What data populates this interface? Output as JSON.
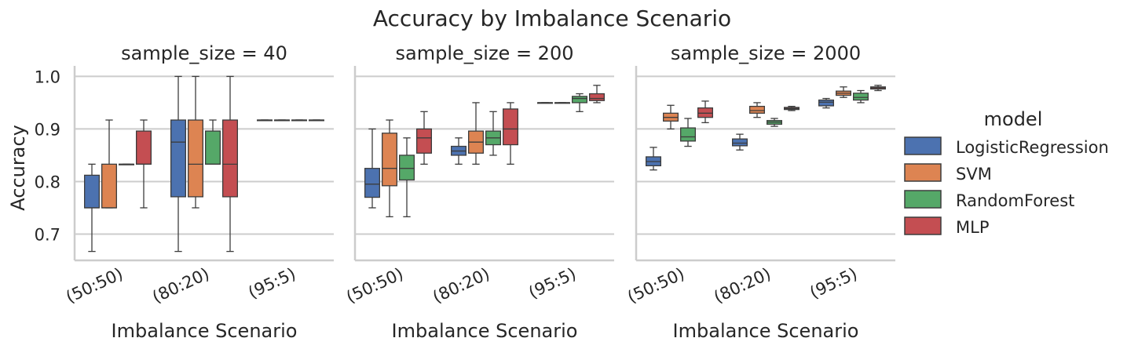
{
  "title": "Accuracy by Imbalance Scenario",
  "ylabel": "Accuracy",
  "legend_title": "model",
  "colors": {
    "LogisticRegression": "#4c72b0",
    "SVM": "#dd8452",
    "RandomForest": "#55a868",
    "MLP": "#c44e52",
    "grid": "#cccccc",
    "whisker": "#3d3d3d"
  },
  "chart_data": {
    "type": "box",
    "title": "Accuracy by Imbalance Scenario",
    "ylabel": "Accuracy",
    "ylim": [
      0.65,
      1.02
    ],
    "yticks": [
      0.7,
      0.8,
      0.9,
      1.0
    ],
    "ytick_labels": [
      "0.7",
      "0.8",
      "0.9",
      "1.0"
    ],
    "grid": "horizontal",
    "legend_title": "model",
    "legend_placement": "right",
    "categories": [
      "(50:50)",
      "(80:20)",
      "(95:5)"
    ],
    "series_names": [
      "LogisticRegression",
      "SVM",
      "RandomForest",
      "MLP"
    ],
    "facets": [
      {
        "title": "sample_size = 40",
        "xlabel": "Imbalance Scenario",
        "boxes": [
          [
            {
              "min": 0.667,
              "q1": 0.75,
              "median": 0.75,
              "q3": 0.812,
              "max": 0.833
            },
            {
              "min": 0.75,
              "q1": 0.75,
              "median": 0.75,
              "q3": 0.833,
              "max": 0.917
            },
            {
              "min": 0.833,
              "q1": 0.833,
              "median": 0.833,
              "q3": 0.833,
              "max": 0.833
            },
            {
              "min": 0.75,
              "q1": 0.833,
              "median": 0.833,
              "q3": 0.896,
              "max": 0.917
            }
          ],
          [
            {
              "min": 0.667,
              "q1": 0.771,
              "median": 0.875,
              "q3": 0.917,
              "max": 1.0
            },
            {
              "min": 0.75,
              "q1": 0.771,
              "median": 0.833,
              "q3": 0.917,
              "max": 1.0
            },
            {
              "min": 0.833,
              "q1": 0.833,
              "median": 0.833,
              "q3": 0.896,
              "max": 0.917
            },
            {
              "min": 0.667,
              "q1": 0.771,
              "median": 0.833,
              "q3": 0.917,
              "max": 1.0
            }
          ],
          [
            {
              "min": 0.917,
              "q1": 0.917,
              "median": 0.917,
              "q3": 0.917,
              "max": 0.917
            },
            {
              "min": 0.917,
              "q1": 0.917,
              "median": 0.917,
              "q3": 0.917,
              "max": 0.917
            },
            {
              "min": 0.917,
              "q1": 0.917,
              "median": 0.917,
              "q3": 0.917,
              "max": 0.917
            },
            {
              "min": 0.917,
              "q1": 0.917,
              "median": 0.917,
              "q3": 0.917,
              "max": 0.917
            }
          ]
        ]
      },
      {
        "title": "sample_size = 200",
        "xlabel": "Imbalance Scenario",
        "boxes": [
          [
            {
              "min": 0.75,
              "q1": 0.77,
              "median": 0.795,
              "q3": 0.825,
              "max": 0.9
            },
            {
              "min": 0.733,
              "q1": 0.792,
              "median": 0.825,
              "q3": 0.892,
              "max": 0.917
            },
            {
              "min": 0.733,
              "q1": 0.803,
              "median": 0.825,
              "q3": 0.85,
              "max": 0.883
            },
            {
              "min": 0.833,
              "q1": 0.854,
              "median": 0.883,
              "q3": 0.9,
              "max": 0.933
            }
          ],
          [
            {
              "min": 0.833,
              "q1": 0.85,
              "median": 0.858,
              "q3": 0.867,
              "max": 0.883
            },
            {
              "min": 0.833,
              "q1": 0.854,
              "median": 0.875,
              "q3": 0.896,
              "max": 0.95
            },
            {
              "min": 0.85,
              "q1": 0.87,
              "median": 0.883,
              "q3": 0.896,
              "max": 0.933
            },
            {
              "min": 0.833,
              "q1": 0.87,
              "median": 0.9,
              "q3": 0.938,
              "max": 0.95
            }
          ],
          [
            {
              "min": 0.95,
              "q1": 0.95,
              "median": 0.95,
              "q3": 0.95,
              "max": 0.95
            },
            {
              "min": 0.95,
              "q1": 0.95,
              "median": 0.95,
              "q3": 0.95,
              "max": 0.95
            },
            {
              "min": 0.933,
              "q1": 0.95,
              "median": 0.958,
              "q3": 0.962,
              "max": 0.967
            },
            {
              "min": 0.95,
              "q1": 0.954,
              "median": 0.958,
              "q3": 0.967,
              "max": 0.983
            }
          ]
        ]
      },
      {
        "title": "sample_size = 2000",
        "xlabel": "Imbalance Scenario",
        "boxes": [
          [
            {
              "min": 0.822,
              "q1": 0.83,
              "median": 0.838,
              "q3": 0.847,
              "max": 0.865
            },
            {
              "min": 0.9,
              "q1": 0.915,
              "median": 0.922,
              "q3": 0.93,
              "max": 0.945
            },
            {
              "min": 0.867,
              "q1": 0.877,
              "median": 0.885,
              "q3": 0.902,
              "max": 0.92
            },
            {
              "min": 0.912,
              "q1": 0.922,
              "median": 0.93,
              "q3": 0.94,
              "max": 0.953
            }
          ],
          [
            {
              "min": 0.86,
              "q1": 0.868,
              "median": 0.873,
              "q3": 0.881,
              "max": 0.89
            },
            {
              "min": 0.922,
              "q1": 0.93,
              "median": 0.935,
              "q3": 0.943,
              "max": 0.95
            },
            {
              "min": 0.905,
              "q1": 0.909,
              "median": 0.913,
              "q3": 0.916,
              "max": 0.92
            },
            {
              "min": 0.935,
              "q1": 0.937,
              "median": 0.939,
              "q3": 0.941,
              "max": 0.943
            }
          ],
          [
            {
              "min": 0.94,
              "q1": 0.944,
              "median": 0.951,
              "q3": 0.955,
              "max": 0.958
            },
            {
              "min": 0.96,
              "q1": 0.964,
              "median": 0.968,
              "q3": 0.972,
              "max": 0.98
            },
            {
              "min": 0.95,
              "q1": 0.955,
              "median": 0.96,
              "q3": 0.968,
              "max": 0.973
            },
            {
              "min": 0.973,
              "q1": 0.976,
              "median": 0.978,
              "q3": 0.98,
              "max": 0.983
            }
          ]
        ]
      }
    ]
  }
}
